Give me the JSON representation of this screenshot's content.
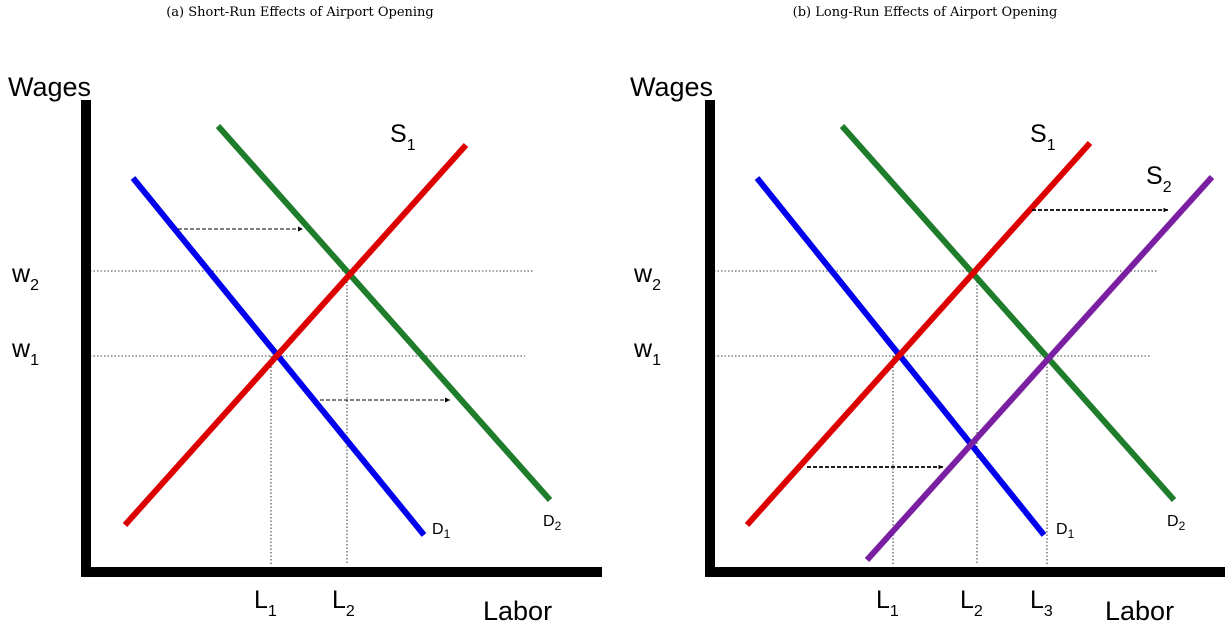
{
  "panels": [
    {
      "caption": "(a) Short-Run Effects of Airport Opening",
      "y_axis_label": "Wages",
      "x_axis_label": "Labor",
      "curves": [
        {
          "base": "S",
          "sub": "1"
        },
        {
          "base": "D",
          "sub": "1"
        },
        {
          "base": "D",
          "sub": "2"
        }
      ],
      "wages": [
        {
          "base": "w",
          "sub": "2"
        },
        {
          "base": "w",
          "sub": "1"
        }
      ],
      "labor": [
        {
          "base": "L",
          "sub": "1"
        },
        {
          "base": "L",
          "sub": "2"
        }
      ]
    },
    {
      "caption": "(b) Long-Run Effects of Airport Opening",
      "y_axis_label": "Wages",
      "x_axis_label": "Labor",
      "curves": [
        {
          "base": "S",
          "sub": "1"
        },
        {
          "base": "S",
          "sub": "2"
        },
        {
          "base": "D",
          "sub": "1"
        },
        {
          "base": "D",
          "sub": "2"
        }
      ],
      "wages": [
        {
          "base": "w",
          "sub": "2"
        },
        {
          "base": "w",
          "sub": "1"
        }
      ],
      "labor": [
        {
          "base": "L",
          "sub": "1"
        },
        {
          "base": "L",
          "sub": "2"
        },
        {
          "base": "L",
          "sub": "3"
        }
      ]
    }
  ]
}
